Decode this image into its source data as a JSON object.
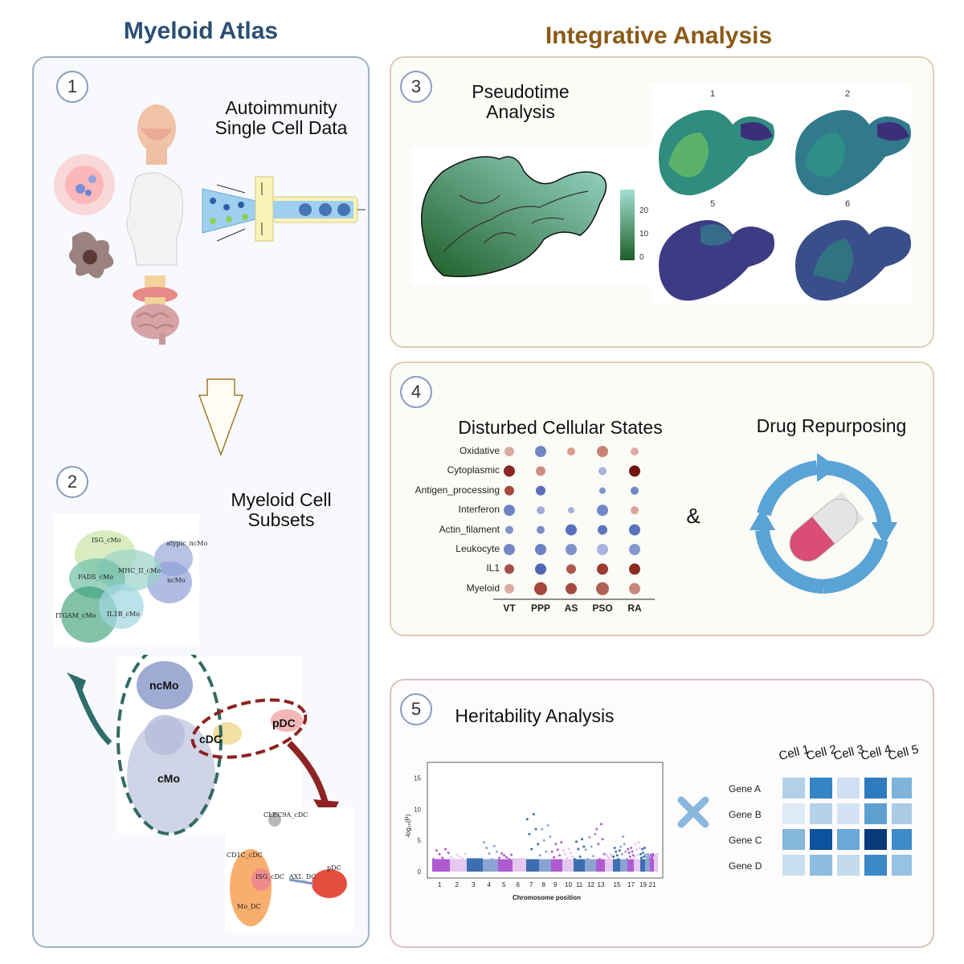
{
  "titles": {
    "left": "Myeloid Atlas",
    "right": "Integrative Analysis"
  },
  "colors": {
    "left_title": "#2b4f72",
    "right_title": "#8a5a17",
    "left_border": "#9fb2c4",
    "right_border": "#dccdb6",
    "panel5_border": "#dcbfbd"
  },
  "panel1": {
    "number": "1",
    "text": "Autoimmunity Single Cell Data"
  },
  "panel2": {
    "number": "2",
    "text": "Myeloid Cell Subsets",
    "umap_labels": [
      "ISG_cMo",
      "atypic_ncMo",
      "MHC_II_cMo",
      "FADS_cMo",
      "ncMo",
      "ITGAM_cMo",
      "IL1B_cMo"
    ],
    "main_clusters": [
      "ncMo",
      "cDC",
      "pDC",
      "cMo"
    ],
    "dc_labels": [
      "CLEC9A_cDC",
      "CD1C_cDC",
      "ISG_cDC",
      "AXL_DC",
      "pDC",
      "Mo_DC"
    ]
  },
  "panel3": {
    "number": "3",
    "text": "Pseudotime Analysis",
    "colorbar_ticks": [
      "20",
      "10",
      "0"
    ],
    "facets": [
      "1",
      "2",
      "5",
      "6"
    ]
  },
  "panel4": {
    "number": "4",
    "dot_title": "Disturbed Cellular States",
    "drug_title": "Drug Repurposing",
    "ampersand": "&",
    "rows": [
      "Oxidative",
      "Cytoplasmic",
      "Antigen_processing",
      "Interferon",
      "Actin_filament",
      "Leukocyte",
      "IL1",
      "Myeloid"
    ],
    "cols": [
      "VT",
      "PPP",
      "AS",
      "PSO",
      "RA"
    ],
    "dots": [
      [
        [
          6,
          "#dca9a4"
        ],
        [
          7,
          "#6f86c4"
        ],
        [
          5,
          "#d99a90"
        ],
        [
          7,
          "#c98475"
        ],
        [
          5,
          "#dfaaa6"
        ]
      ],
      [
        [
          7,
          "#8a2521"
        ],
        [
          6,
          "#cf8e82"
        ],
        [
          0,
          ""
        ],
        [
          5,
          "#a7b3dc"
        ],
        [
          7,
          "#731410"
        ]
      ],
      [
        [
          6,
          "#a84a3e"
        ],
        [
          6,
          "#5a6fbc"
        ],
        [
          0,
          ""
        ],
        [
          4,
          "#7f93cf"
        ],
        [
          5,
          "#7085c6"
        ]
      ],
      [
        [
          7,
          "#6e84c6"
        ],
        [
          5,
          "#9eadd9"
        ],
        [
          4,
          "#a4b3de"
        ],
        [
          7,
          "#7387c7"
        ],
        [
          5,
          "#dea39a"
        ]
      ],
      [
        [
          5,
          "#7f92cb"
        ],
        [
          5,
          "#7b8fcb"
        ],
        [
          7,
          "#586fbb"
        ],
        [
          6,
          "#5f76bf"
        ],
        [
          7,
          "#5a71bc"
        ]
      ],
      [
        [
          7,
          "#7387c5"
        ],
        [
          7,
          "#6d82c4"
        ],
        [
          7,
          "#7f93cd"
        ],
        [
          7,
          "#a8b5de"
        ],
        [
          7,
          "#8498ce"
        ]
      ],
      [
        [
          6,
          "#a55048"
        ],
        [
          7,
          "#4f67b5"
        ],
        [
          6,
          "#ad5a4c"
        ],
        [
          7,
          "#9a3a30"
        ],
        [
          7,
          "#8c2b23"
        ]
      ],
      [
        [
          6,
          "#dcaaa4"
        ],
        [
          8,
          "#a6463b"
        ],
        [
          7,
          "#a34b3f"
        ],
        [
          8,
          "#b06055"
        ],
        [
          7,
          "#c8877a"
        ]
      ]
    ]
  },
  "panel5": {
    "number": "5",
    "text": "Heritability Analysis",
    "y_label": "-log₁₀(P)",
    "y_ticks": [
      "15",
      "10",
      "5",
      "0"
    ],
    "x_label": "Chromosome position",
    "x_ticks": [
      "1",
      "2",
      "3",
      "4",
      "5",
      "6",
      "7",
      "8",
      "9",
      "10",
      "11",
      "12",
      "13",
      "15",
      "17",
      "19",
      "21"
    ],
    "cells": [
      "Cell 1",
      "Cell 2",
      "Cell 3",
      "Cell 4",
      "Cell 5"
    ],
    "genes": [
      "Gene A",
      "Gene B",
      "Gene C",
      "Gene D"
    ],
    "heat": [
      [
        "#b4d0e8",
        "#3585c4",
        "#cfe0f2",
        "#2f7bbf",
        "#7fb3d9"
      ],
      [
        "#deebf7",
        "#b6d2ea",
        "#d3e3f3",
        "#5da0d0",
        "#a9cbe6"
      ],
      [
        "#85b6dc",
        "#0c529d",
        "#6aa8d5",
        "#083a7a",
        "#3e8cc9"
      ],
      [
        "#cadff0",
        "#8dbde0",
        "#c4dbef",
        "#3b89c7",
        "#96c3e3"
      ]
    ]
  }
}
